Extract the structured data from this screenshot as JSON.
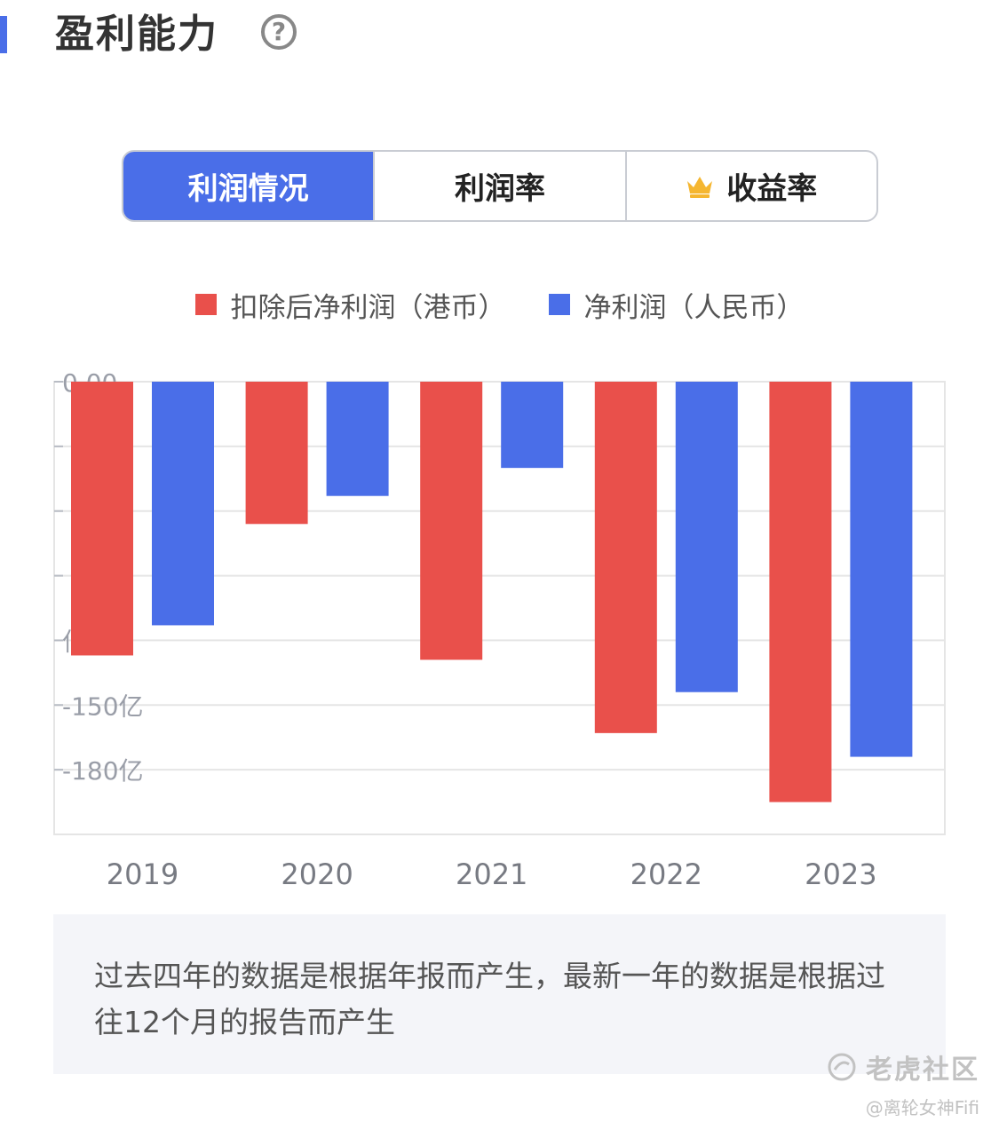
{
  "header": {
    "title": "盈利能力",
    "help_symbol": "?",
    "accent_color": "#4a6ee8"
  },
  "tabs": [
    {
      "label": "利润情况",
      "active": true
    },
    {
      "label": "利润率",
      "active": false
    },
    {
      "label": "收益率",
      "active": false,
      "icon": "crown-icon"
    }
  ],
  "colors": {
    "red": "#e9504b",
    "blue": "#4a6ee8",
    "crown": "#f5b630",
    "grid": "#e5e5e5",
    "axis_text": "#9a9ea8"
  },
  "chart_data": {
    "type": "bar",
    "categories": [
      "2019",
      "2020",
      "2021",
      "2022",
      "2023"
    ],
    "series": [
      {
        "name": "扣除后净利润（港币）",
        "values": [
          -127,
          -66,
          -129,
          -163,
          -195
        ]
      },
      {
        "name": "净利润（人民币）",
        "values": [
          -113,
          -53,
          -40,
          -144,
          -174
        ]
      }
    ],
    "y_ticks": [
      {
        "value": 0,
        "label": "0.00"
      },
      {
        "value": -30,
        "label": ""
      },
      {
        "value": -60,
        "label": ""
      },
      {
        "value": -90,
        "label": ""
      },
      {
        "value": -120,
        "label": "亿"
      },
      {
        "value": -150,
        "label": "-150亿"
      },
      {
        "value": -180,
        "label": "-180亿"
      }
    ],
    "ylim": [
      -210,
      0
    ],
    "legend_position": "top-center",
    "grid": true
  },
  "note": {
    "text": "过去四年的数据是根据年报而产生，最新一年的数据是根据过往12个月的报告而产生"
  },
  "watermark": {
    "logo": "老虎社区",
    "user": "@离轮女神Fifi"
  }
}
